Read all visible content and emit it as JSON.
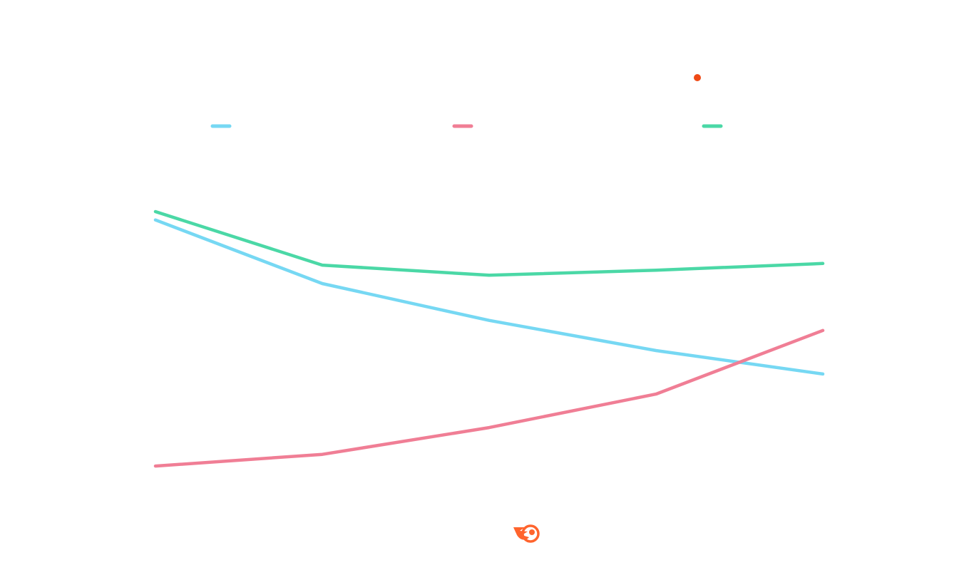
{
  "chart_data": {
    "type": "line",
    "x": [
      1,
      2,
      3,
      4,
      5
    ],
    "ylim": [
      0,
      100
    ],
    "grid": false,
    "legend_position": "top",
    "series": [
      {
        "key": "series-blue",
        "color": "#76d8f3",
        "values": [
          79,
          60,
          49,
          40,
          33
        ]
      },
      {
        "key": "series-pink",
        "color": "#f07e95",
        "values": [
          5.5,
          9,
          17,
          27,
          46
        ]
      },
      {
        "key": "series-green",
        "color": "#4bd8a6",
        "values": [
          81.5,
          65.5,
          62.5,
          64,
          66
        ]
      }
    ]
  },
  "legend": {
    "items": [
      {
        "color": "#76d8f3"
      },
      {
        "color": "#f07e95"
      },
      {
        "color": "#4bd8a6"
      }
    ]
  },
  "accent_dot": {
    "color": "#ef4a16"
  },
  "brand_logo": {
    "icon": "semrush-logo-icon",
    "color": "#ff642d"
  }
}
